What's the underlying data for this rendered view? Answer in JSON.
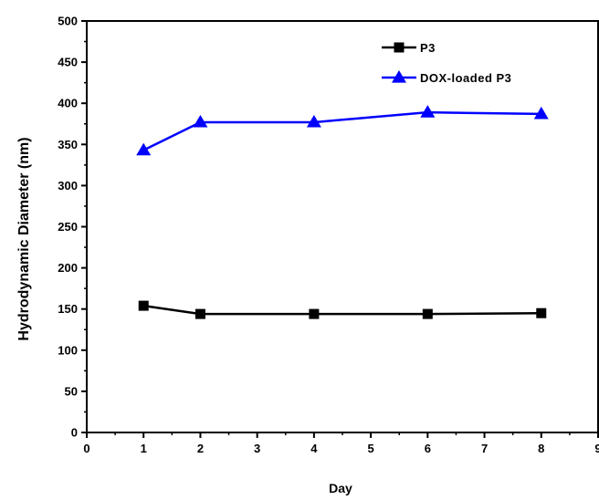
{
  "chart_data": {
    "type": "line",
    "title": "",
    "xlabel": "Day",
    "ylabel": "Hydrodynamic Diameter (nm)",
    "xlim": [
      0,
      9
    ],
    "ylim": [
      0,
      500
    ],
    "xticks": [
      0,
      1,
      2,
      3,
      4,
      5,
      6,
      7,
      8,
      9
    ],
    "yticks": [
      0,
      50,
      100,
      150,
      200,
      250,
      300,
      350,
      400,
      450,
      500
    ],
    "grid": false,
    "legend_position": "top-right",
    "series": [
      {
        "name": "P3",
        "marker": "square",
        "color": "#000000",
        "x": [
          1,
          2,
          4,
          6,
          8
        ],
        "y": [
          154,
          144,
          144,
          144,
          145
        ]
      },
      {
        "name": "DOX-loaded P3",
        "marker": "triangle",
        "color": "#0000ff",
        "x": [
          1,
          2,
          4,
          6,
          8
        ],
        "y": [
          343,
          377,
          377,
          389,
          387
        ]
      }
    ]
  }
}
